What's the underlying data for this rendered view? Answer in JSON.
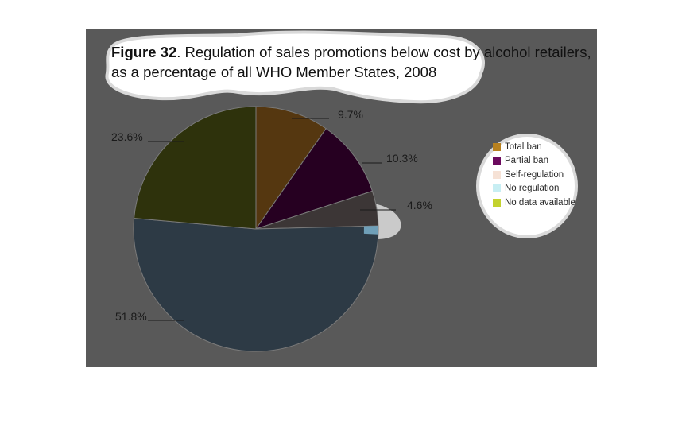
{
  "title": {
    "figure_label": "Figure 32",
    "text": ". Regulation of sales promotions below cost by alcohol retailers, as a percentage of all WHO Member States, 2008"
  },
  "chart_data": {
    "type": "pie",
    "title": "Figure 32. Regulation of sales promotions below cost by alcohol retailers, as a percentage of all WHO Member States, 2008",
    "slices": [
      {
        "name": "Total ban",
        "value": 9.7,
        "label": "9.7%",
        "color": "#553710",
        "legend_color": "#b8811f"
      },
      {
        "name": "Partial ban",
        "value": 10.3,
        "label": "10.3%",
        "color": "#260021",
        "legend_color": "#6b0a5e"
      },
      {
        "name": "Self-regulation",
        "value": 4.6,
        "label": "4.6%",
        "color": "#3c3636",
        "legend_color": "#f6e2d6"
      },
      {
        "name": "No regulation",
        "value": 51.8,
        "label": "51.8%",
        "color": "#2d3a45",
        "legend_color": "#c7eef3"
      },
      {
        "name": "No data available",
        "value": 23.6,
        "label": "23.6%",
        "color": "#2e320c",
        "legend_color": "#c3d22e"
      }
    ],
    "legend_placement": "right"
  }
}
